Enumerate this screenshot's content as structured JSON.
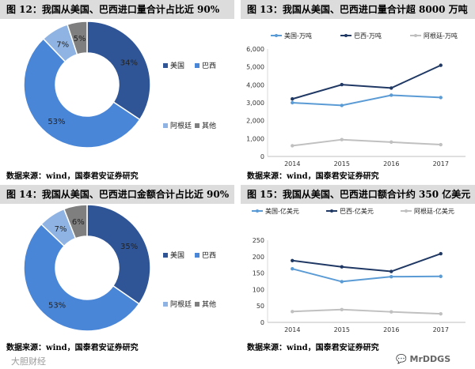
{
  "panels": [
    {
      "title": "图 12：我国从美国、巴西进口量合计占比近 90%",
      "source": "数据来源：wind，国泰君安证券研究"
    },
    {
      "title": "图 13：我国从美国、巴西进口量合计超 8000 万吨",
      "source": "数据来源：wind，国泰君安证券研究"
    },
    {
      "title": "图 14：我国从美国、巴西进口金额合计占比近 90%",
      "source": "数据来源：wind，国泰君安证券研究"
    },
    {
      "title": "图 15：我国从美国、巴西进口额合计约 350 亿美元",
      "source": "数据来源：wind，国泰君安证券研究"
    }
  ],
  "watermarks": {
    "left": "大胆财经",
    "right": "MrDDGS"
  },
  "chart_data": [
    {
      "type": "pie",
      "title": "图 12：我国从美国、巴西进口量合计占比近 90%",
      "labels": [
        "美国",
        "巴西",
        "阿根廷",
        "其他"
      ],
      "values": [
        34,
        53,
        7,
        5
      ],
      "value_labels": [
        "34%",
        "53%",
        "7%",
        "5%"
      ],
      "colors": [
        "#2f5597",
        "#4a86d8",
        "#8fb4e3",
        "#7f7f7f"
      ],
      "legend_position": "right"
    },
    {
      "type": "line",
      "title": "图 13：我国从美国、巴西进口量合计超 8000 万吨",
      "x": [
        "2014",
        "2015",
        "2016",
        "2017"
      ],
      "series": [
        {
          "name": "美国-万吨",
          "values": [
            3000,
            2850,
            3420,
            3290
          ],
          "color": "#5b9bd5"
        },
        {
          "name": "巴西-万吨",
          "values": [
            3210,
            4010,
            3820,
            5090
          ],
          "color": "#1f3864"
        },
        {
          "name": "阿根廷-万吨",
          "values": [
            600,
            940,
            800,
            660
          ],
          "color": "#c0c0c0"
        }
      ],
      "ylim": [
        0,
        6000
      ],
      "yticks": [
        "0",
        "1,000",
        "2,000",
        "3,000",
        "4,000",
        "5,000",
        "6,000"
      ],
      "legend_position": "top"
    },
    {
      "type": "pie",
      "title": "图 14：我国从美国、巴西进口金额合计占比近 90%",
      "labels": [
        "美国",
        "巴西",
        "阿根廷",
        "其他"
      ],
      "values": [
        35,
        53,
        7,
        6
      ],
      "value_labels": [
        "35%",
        "53%",
        "7%",
        "6%"
      ],
      "colors": [
        "#2f5597",
        "#4a86d8",
        "#8fb4e3",
        "#7f7f7f"
      ],
      "legend_position": "right"
    },
    {
      "type": "line",
      "title": "图 15：我国从美国、巴西进口额合计约 350 亿美元",
      "x": [
        "2014",
        "2015",
        "2016",
        "2017"
      ],
      "series": [
        {
          "name": "美国-亿美元",
          "values": [
            163,
            124,
            139,
            140
          ],
          "color": "#5b9bd5"
        },
        {
          "name": "巴西-亿美元",
          "values": [
            188,
            169,
            155,
            209
          ],
          "color": "#1f3864"
        },
        {
          "name": "阿根廷-亿美元",
          "values": [
            33,
            39,
            32,
            26
          ],
          "color": "#c0c0c0"
        }
      ],
      "ylim": [
        0,
        250
      ],
      "yticks": [
        "0",
        "50",
        "100",
        "150",
        "200",
        "250"
      ],
      "legend_position": "top"
    }
  ]
}
